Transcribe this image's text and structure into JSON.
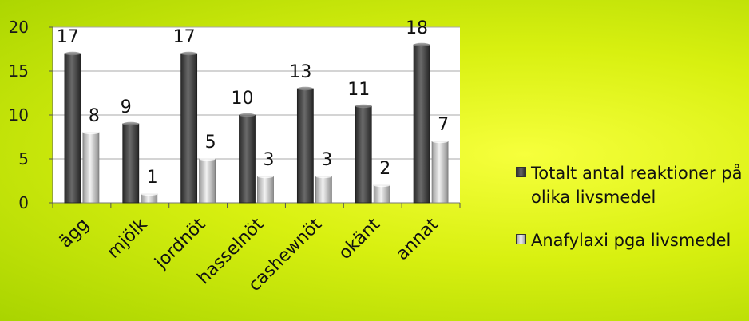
{
  "chart_data": {
    "type": "bar",
    "categories": [
      "ägg",
      "mjölk",
      "jordnöt",
      "hasselnöt",
      "cashewnöt",
      "okänt",
      "annat"
    ],
    "series": [
      {
        "name": "Totalt antal reaktioner på olika livsmedel",
        "values": [
          17,
          9,
          17,
          10,
          13,
          11,
          18
        ],
        "color": "#3c3c3c"
      },
      {
        "name": "Anafylaxi pga livsmedel",
        "values": [
          8,
          1,
          5,
          3,
          3,
          2,
          7
        ],
        "color": "#bdbdbd"
      }
    ],
    "ylim": [
      0,
      20
    ],
    "yticks": [
      "0",
      "5",
      "10",
      "15",
      "20"
    ],
    "grid": true,
    "legend": "right",
    "background": "#d8f010"
  }
}
